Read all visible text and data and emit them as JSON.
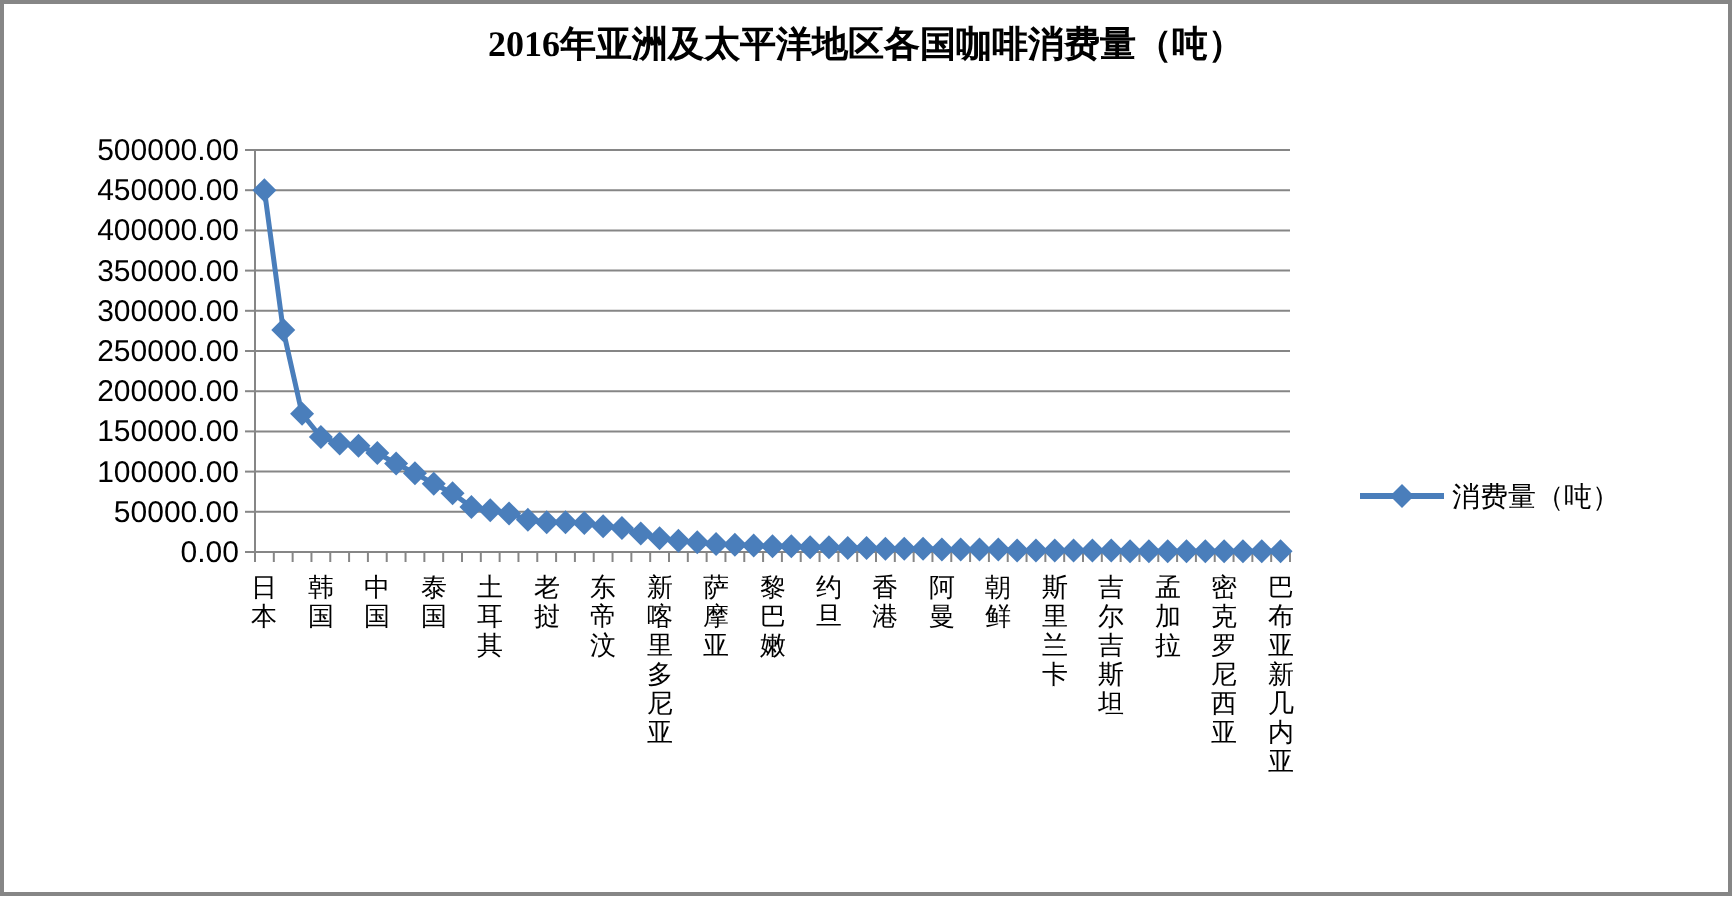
{
  "chart_data": {
    "type": "line",
    "title": "2016年亚洲及太平洋地区各国咖啡消费量（吨）",
    "categories": [
      "日本",
      null,
      null,
      "韩国",
      null,
      null,
      "中国",
      null,
      null,
      "泰国",
      null,
      null,
      "土耳其",
      null,
      null,
      "老挝",
      null,
      null,
      "东帝汶",
      null,
      null,
      "新喀里多尼亚",
      null,
      null,
      "萨摩亚",
      null,
      null,
      "黎巴嫩",
      null,
      null,
      "约旦",
      null,
      null,
      "香港",
      null,
      null,
      "阿曼",
      null,
      null,
      "朝鲜",
      null,
      null,
      "斯里兰卡",
      null,
      null,
      "吉尔吉斯坦",
      null,
      null,
      "孟加拉",
      null,
      null,
      "密克罗尼西亚",
      null,
      null,
      "巴布亚新几内亚"
    ],
    "series": [
      {
        "name": "消费量（吨）",
        "color": "#4a7ebb",
        "values": [
          450000,
          276000,
          172000,
          143000,
          135000,
          132000,
          123000,
          110000,
          98000,
          85000,
          73000,
          56000,
          52000,
          48000,
          40000,
          37000,
          37000,
          36000,
          32000,
          30000,
          23000,
          17000,
          14000,
          12000,
          10000,
          9000,
          8000,
          7000,
          7000,
          6000,
          6000,
          5000,
          5000,
          4000,
          4000,
          4000,
          3000,
          3000,
          3000,
          3000,
          2000,
          2000,
          2000,
          2000,
          2000,
          2000,
          1000,
          1000,
          1000,
          1000,
          1000,
          1000,
          1000,
          1000,
          1000
        ]
      }
    ],
    "ylim": [
      0,
      500000
    ],
    "yticks": [
      {
        "value": 0,
        "label": "0.00"
      },
      {
        "value": 50000,
        "label": "50000.00"
      },
      {
        "value": 100000,
        "label": "100000.00"
      },
      {
        "value": 150000,
        "label": "150000.00"
      },
      {
        "value": 200000,
        "label": "200000.00"
      },
      {
        "value": 250000,
        "label": "250000.00"
      },
      {
        "value": 300000,
        "label": "300000.00"
      },
      {
        "value": 350000,
        "label": "350000.00"
      },
      {
        "value": 400000,
        "label": "400000.00"
      },
      {
        "value": 450000,
        "label": "450000.00"
      },
      {
        "value": 500000,
        "label": "500000.00"
      }
    ],
    "grid": "y",
    "legend": "right",
    "marker": "diamond",
    "line_style": "solid"
  }
}
